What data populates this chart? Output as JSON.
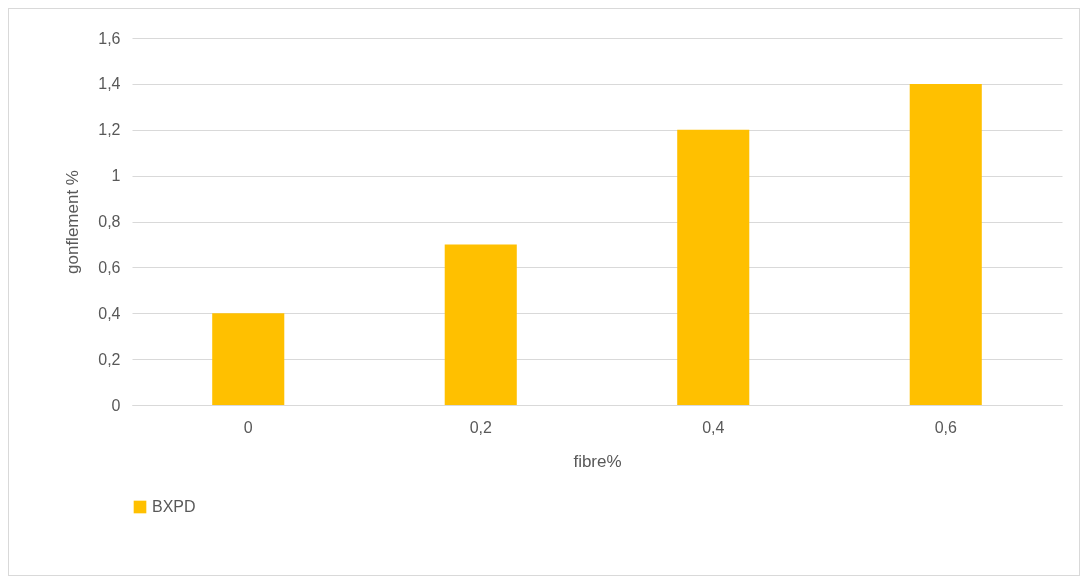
{
  "chart_data": {
    "type": "bar",
    "xlabel": "fibre%",
    "ylabel": "gonflement %",
    "categories": [
      "0",
      "0,2",
      "0,4",
      "0,6"
    ],
    "series": [
      {
        "name": "BXPD",
        "color": "#ffc000",
        "values": [
          0.4,
          0.7,
          1.2,
          1.4
        ]
      }
    ],
    "ylim": [
      0,
      1.6
    ],
    "yticks": [
      0,
      {
        "value": 0.2,
        "label": "0,2"
      },
      {
        "value": 0.4,
        "label": "0,4"
      },
      {
        "value": 0.6,
        "label": "0,6"
      },
      {
        "value": 0.8,
        "label": "0,8"
      },
      1,
      {
        "value": 1.2,
        "label": "1,2"
      },
      {
        "value": 1.4,
        "label": "1,4"
      },
      {
        "value": 1.6,
        "label": "1,6"
      }
    ],
    "grid": "y",
    "legend": "bottom"
  }
}
